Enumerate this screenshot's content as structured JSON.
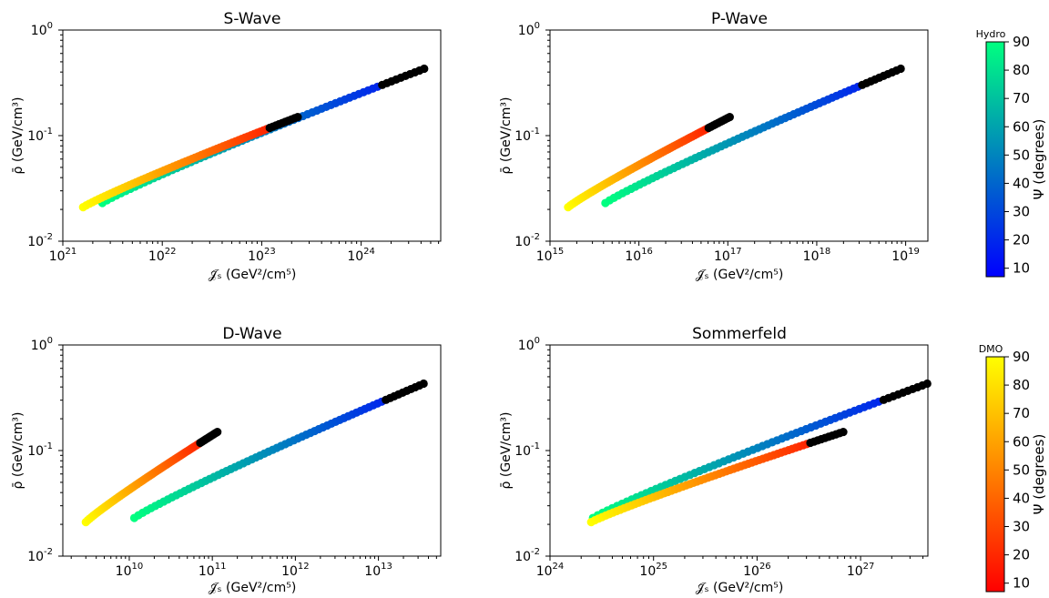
{
  "chart_data": [
    {
      "type": "scatter",
      "title": "S-Wave",
      "xlabel": "𝒥̄ₛ (GeV²/cm⁵)",
      "ylabel": "ρ̄ (GeV/cm³)",
      "xscale": "log",
      "yscale": "log",
      "xlim_exp": [
        21.0,
        24.8
      ],
      "ylim_exp": [
        -2,
        0
      ],
      "xtick_exps": [
        "21",
        "22",
        "23",
        "24"
      ],
      "ytick_exps": [
        "-2",
        "-1",
        "0"
      ],
      "series": [
        {
          "colormap": "hydro",
          "psi_range": [
            90,
            8
          ],
          "x_range": [
            2.5e+21,
            4.3e+24
          ],
          "y_range": [
            0.023,
            0.43
          ],
          "psi_black_below": 0
        },
        {
          "colormap": "dmo",
          "psi_range": [
            90,
            8
          ],
          "x_range": [
            1.6e+21,
            2.3e+23
          ],
          "y_range": [
            0.021,
            0.15
          ],
          "psi_black_below": 0
        }
      ]
    },
    {
      "type": "scatter",
      "title": "P-Wave",
      "xlabel": "𝒥̄ₛ (GeV²/cm⁵)",
      "ylabel": "ρ̄ (GeV/cm³)",
      "xscale": "log",
      "yscale": "log",
      "xlim_exp": [
        15.0,
        19.25
      ],
      "ylim_exp": [
        -2,
        0
      ],
      "xtick_exps": [
        "15",
        "16",
        "17",
        "18",
        "19"
      ],
      "ytick_exps": [
        "-2",
        "-1",
        "0"
      ],
      "series": [
        {
          "colormap": "hydro",
          "psi_range": [
            90,
            8
          ],
          "x_range": [
            4200000000000000.0,
            8.8e+18
          ],
          "y_range": [
            0.023,
            0.43
          ],
          "psi_black_below": 0
        },
        {
          "colormap": "dmo",
          "psi_range": [
            90,
            8
          ],
          "x_range": [
            1600000000000000.0,
            1.05e+17
          ],
          "y_range": [
            0.021,
            0.15
          ],
          "psi_black_below": 0
        }
      ]
    },
    {
      "type": "scatter",
      "title": "D-Wave",
      "xlabel": "𝒥̄ₛ (GeV²/cm⁵)",
      "ylabel": "ρ̄ (GeV/cm³)",
      "xscale": "log",
      "yscale": "log",
      "xlim_exp": [
        9.2,
        13.75
      ],
      "ylim_exp": [
        -2,
        0
      ],
      "xtick_exps": [
        "10",
        "11",
        "12",
        "13"
      ],
      "ytick_exps": [
        "-2",
        "-1",
        "0"
      ],
      "series": [
        {
          "colormap": "hydro",
          "psi_range": [
            90,
            8
          ],
          "x_range": [
            11500000000.0,
            35000000000000.0
          ],
          "y_range": [
            0.023,
            0.43
          ],
          "psi_black_below": 0
        },
        {
          "colormap": "dmo",
          "psi_range": [
            90,
            8
          ],
          "x_range": [
            3000000000.0,
            115000000000.0
          ],
          "y_range": [
            0.021,
            0.15
          ],
          "psi_black_below": 0
        }
      ]
    },
    {
      "type": "scatter",
      "title": "Sommerfeld",
      "xlabel": "𝒥̄ₛ (GeV²/cm⁵)",
      "ylabel": "ρ̄ (GeV/cm³)",
      "xscale": "log",
      "yscale": "log",
      "xlim_exp": [
        24.0,
        27.65
      ],
      "ylim_exp": [
        -2,
        0
      ],
      "xtick_exps": [
        "24",
        "25",
        "26",
        "27"
      ],
      "ytick_exps": [
        "-2",
        "-1",
        "0"
      ],
      "series": [
        {
          "colormap": "hydro",
          "psi_range": [
            90,
            8
          ],
          "x_range": [
            2.6e+24,
            4.4e+27
          ],
          "y_range": [
            0.023,
            0.43
          ],
          "psi_black_below": 0
        },
        {
          "colormap": "dmo",
          "psi_range": [
            90,
            8
          ],
          "x_range": [
            2.5e+24,
            6.8e+26
          ],
          "y_range": [
            0.021,
            0.15
          ],
          "psi_black_below": 0
        }
      ]
    }
  ],
  "colorbars": [
    {
      "title": "Hydro",
      "label": "Ψ (degrees)",
      "colormap": "winter",
      "range": [
        7,
        90
      ],
      "ticks": [
        "10",
        "20",
        "30",
        "40",
        "50",
        "60",
        "70",
        "80",
        "90"
      ]
    },
    {
      "title": "DMO",
      "label": "Ψ (degrees)",
      "colormap": "autumn",
      "range": [
        7,
        90
      ],
      "ticks": [
        "10",
        "20",
        "30",
        "40",
        "50",
        "60",
        "70",
        "80",
        "90"
      ]
    }
  ],
  "colors": {
    "black": "#000000",
    "winter_low": "#0000ff",
    "winter_high": "#00ff80",
    "autumn_low": "#ff0000",
    "autumn_high": "#ffff00"
  }
}
